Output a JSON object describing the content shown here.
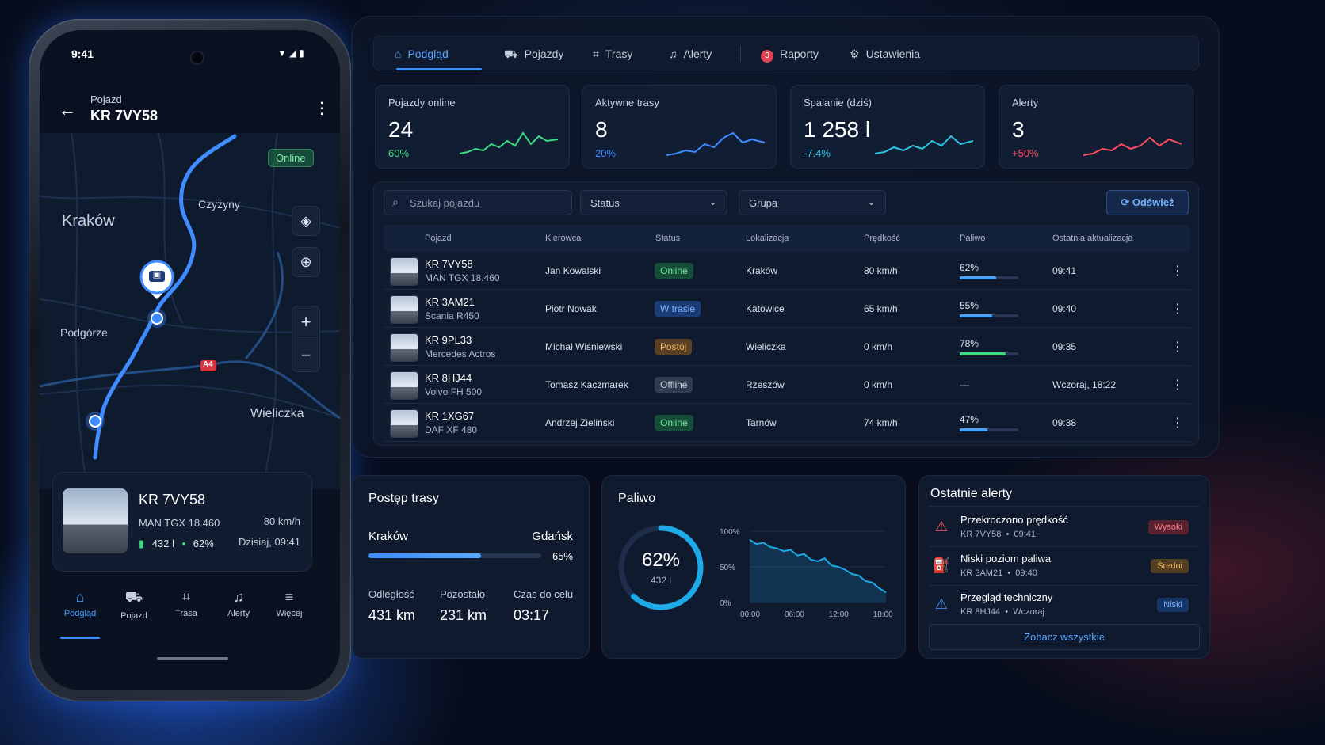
{
  "phone": {
    "status_time": "9:41",
    "header_sub": "Pojazd",
    "header_title": "KR 7VY58",
    "map": {
      "status_badge": "Online",
      "labels": {
        "city": "Kraków",
        "north": "Czyżyny",
        "west": "Podgórze",
        "east": "Wieliczka",
        "road": "A4"
      }
    },
    "vehicle_card": {
      "title": "KR 7VY58",
      "model": "MAN TGX 18.460",
      "speed": "80 km/h",
      "fuel": "432 l",
      "fuel_pct": "62%",
      "updated": "Dzisiaj, 09:41"
    },
    "nav": [
      {
        "label": "Podgląd",
        "icon": "home-icon"
      },
      {
        "label": "Pojazd",
        "icon": "car-icon"
      },
      {
        "label": "Trasa",
        "icon": "route-icon"
      },
      {
        "label": "Alerty",
        "icon": "bell-icon"
      },
      {
        "label": "Więcej",
        "icon": "menu-icon"
      }
    ]
  },
  "tabs": [
    {
      "label": "Podgląd",
      "icon": "home-icon"
    },
    {
      "label": "Pojazdy",
      "icon": "car-icon"
    },
    {
      "label": "Trasy",
      "icon": "route-icon"
    },
    {
      "label": "Alerty",
      "icon": "bell-icon"
    },
    {
      "label": "Raporty",
      "badge": "3"
    },
    {
      "label": "Ustawienia",
      "icon": "gear-icon"
    }
  ],
  "kpis": [
    {
      "label": "Pojazdy online",
      "value": "24",
      "delta": "60%",
      "color": "#3ddc84"
    },
    {
      "label": "Aktywne trasy",
      "value": "8",
      "delta": "20%",
      "color": "#3e8cff"
    },
    {
      "label": "Spalanie (dziś)",
      "value": "1 258 l",
      "delta": "-7.4%",
      "color": "#2fc3e6"
    },
    {
      "label": "Alerty",
      "value": "3",
      "delta": "+50%",
      "color": "#ff4d5e"
    }
  ],
  "filters": {
    "search_placeholder": "Szukaj pojazdu",
    "status": "Status",
    "group": "Grupa",
    "refresh": "Odśwież"
  },
  "table": {
    "headers": [
      "Pojazd",
      "Kierowca",
      "Status",
      "Lokalizacja",
      "Prędkość",
      "Paliwo",
      "Ostatnia aktualizacja"
    ],
    "rows": [
      {
        "plate": "KR 7VY58",
        "model": "MAN TGX 18.460",
        "driver": "Jan Kowalski",
        "status": "Online",
        "location": "Kraków",
        "speed": "80 km/h",
        "fuel": "62%",
        "fuel_level": 0.62,
        "updated": "09:41"
      },
      {
        "plate": "KR 3AM21",
        "model": "Scania R450",
        "driver": "Piotr Nowak",
        "status": "W trasie",
        "location": "Katowice",
        "speed": "65 km/h",
        "fuel": "55%",
        "fuel_level": 0.55,
        "updated": "09:40"
      },
      {
        "plate": "KR 9PL33",
        "model": "Mercedes Actros",
        "driver": "Michał Wiśniewski",
        "status": "Postój",
        "location": "Wieliczka",
        "speed": "0 km/h",
        "fuel": "78%",
        "fuel_level": 0.78,
        "updated": "09:35"
      },
      {
        "plate": "KR 8HJ44",
        "model": "Volvo FH 500",
        "driver": "Tomasz Kaczmarek",
        "status": "Offline",
        "location": "Rzeszów",
        "speed": "0 km/h",
        "fuel": "—",
        "fuel_level": null,
        "updated": "Wczoraj, 18:22"
      },
      {
        "plate": "KR 1XG67",
        "model": "DAF XF 480",
        "driver": "Andrzej Zieliński",
        "status": "Online",
        "location": "Tarnów",
        "speed": "74 km/h",
        "fuel": "47%",
        "fuel_level": 0.47,
        "updated": "09:38"
      }
    ]
  },
  "route": {
    "title": "Postęp trasy",
    "from": "Kraków",
    "to": "Gdańsk",
    "progress": "65%",
    "progress_value": 0.65,
    "stats": [
      {
        "label": "Odległość",
        "value": "431 km"
      },
      {
        "label": "Pozostało",
        "value": "231 km"
      },
      {
        "label": "Czas do celu",
        "value": "03:17"
      }
    ]
  },
  "fuel": {
    "title": "Paliwo",
    "gauge_pct": "62%",
    "gauge_value": 0.62,
    "gauge_sub": "432 l",
    "chart_data": {
      "type": "area",
      "x_ticks": [
        "00:00",
        "06:00",
        "12:00",
        "18:00"
      ],
      "y_ticks": [
        "100%",
        "50%",
        "0%"
      ],
      "ylim": [
        0,
        100
      ],
      "xlim": [
        0,
        20
      ],
      "x": [
        0,
        1,
        2,
        3,
        4,
        5,
        6,
        7,
        8,
        9,
        10,
        11,
        12,
        13,
        14,
        15,
        16,
        17,
        18,
        19,
        20
      ],
      "values": [
        88,
        82,
        84,
        78,
        76,
        72,
        74,
        66,
        68,
        60,
        58,
        62,
        52,
        50,
        46,
        40,
        38,
        30,
        28,
        20,
        14
      ],
      "grid": true
    }
  },
  "alerts": {
    "title": "Ostatnie alerty",
    "items": [
      {
        "title": "Przekroczono prędkość",
        "vehicle": "KR 7VY58",
        "time": "09:41",
        "level": "Wysoki",
        "icon": "warning-icon",
        "color": "#ff5a66"
      },
      {
        "title": "Niski poziom paliwa",
        "vehicle": "KR 3AM21",
        "time": "09:40",
        "level": "Średni",
        "icon": "fuel-icon",
        "color": "#f2a53a"
      },
      {
        "title": "Przegląd techniczny",
        "vehicle": "KR 8HJ44",
        "time": "Wczoraj",
        "level": "Niski",
        "icon": "warning-icon",
        "color": "#4a9bff"
      }
    ],
    "see_all": "Zobacz wszystkie"
  }
}
